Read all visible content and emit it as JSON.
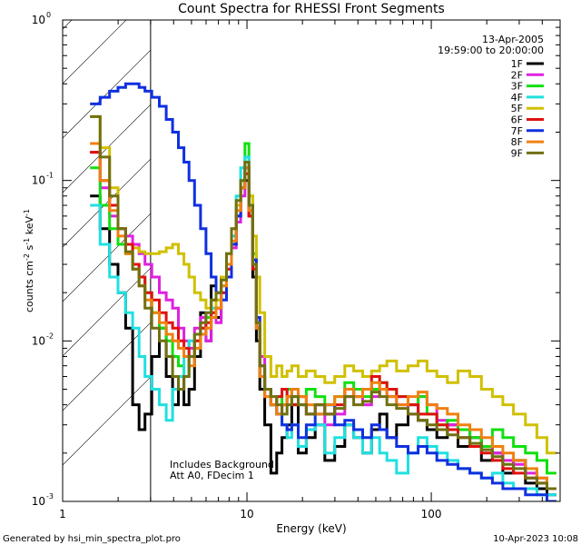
{
  "chart_data": {
    "type": "line",
    "title": "Count Spectra for RHESSI Front Segments",
    "xlabel": "Energy (keV)",
    "ylabel_parts": [
      "counts cm",
      "-2",
      " s",
      "-1",
      " keV",
      "-1"
    ],
    "xscale": "log",
    "yscale": "log",
    "xlim": [
      1,
      500
    ],
    "ylim": [
      0.001,
      1
    ],
    "x_ticks": [
      {
        "value": 1,
        "label": "1"
      },
      {
        "value": 10,
        "label": "10"
      },
      {
        "value": 100,
        "label": "100"
      }
    ],
    "y_ticks": [
      {
        "value": 0.001,
        "base": "10",
        "exp": "-3"
      },
      {
        "value": 0.01,
        "base": "10",
        "exp": "-2"
      },
      {
        "value": 0.1,
        "base": "10",
        "exp": "-1"
      },
      {
        "value": 1,
        "base": "10",
        "exp": "0"
      }
    ],
    "date": "13-Apr-2005",
    "time_range": "19:59:00 to 20:00:00",
    "annotations": [
      "Includes Background",
      "Att A0, FDecim 1"
    ],
    "hatched_region_xmax": 3,
    "x": [
      1.5,
      1.7,
      1.9,
      2.1,
      2.3,
      2.5,
      2.7,
      2.9,
      3.2,
      3.5,
      3.8,
      4.1,
      4.4,
      4.7,
      5.0,
      5.4,
      5.8,
      6.2,
      6.6,
      7.0,
      7.5,
      8.0,
      8.5,
      9.0,
      9.5,
      10.0,
      10.5,
      11.0,
      11.5,
      12.0,
      13,
      14,
      15,
      16,
      17,
      18,
      20,
      22,
      25,
      28,
      32,
      36,
      40,
      45,
      50,
      55,
      60,
      70,
      80,
      90,
      100,
      115,
      130,
      150,
      175,
      200,
      230,
      260,
      300,
      350,
      400,
      450
    ],
    "series": [
      {
        "name": "1F",
        "color": "#000000",
        "values": [
          0.08,
          0.05,
          0.03,
          0.02,
          0.012,
          0.004,
          0.0028,
          0.0035,
          0.008,
          0.012,
          0.006,
          0.004,
          0.006,
          0.004,
          0.005,
          0.008,
          0.015,
          0.01,
          0.022,
          0.014,
          0.025,
          0.03,
          0.04,
          0.06,
          0.09,
          0.1,
          0.06,
          0.025,
          0.01,
          0.005,
          0.003,
          0.0015,
          0.002,
          0.0025,
          0.003,
          0.004,
          0.002,
          0.0025,
          0.003,
          0.0018,
          0.0022,
          0.003,
          0.0025,
          0.002,
          0.0028,
          0.0035,
          0.0025,
          0.003,
          0.004,
          0.0032,
          0.0028,
          0.0025,
          0.003,
          0.0022,
          0.0025,
          0.0018,
          0.002,
          0.0015,
          0.0018,
          0.0013,
          0.0012,
          0.0011
        ]
      },
      {
        "name": "2F",
        "color": "#e020e0",
        "values": [
          0.15,
          0.09,
          0.06,
          0.05,
          0.045,
          0.04,
          0.035,
          0.03,
          0.025,
          0.02,
          0.018,
          0.016,
          0.012,
          0.01,
          0.009,
          0.012,
          0.014,
          0.01,
          0.018,
          0.013,
          0.02,
          0.028,
          0.038,
          0.055,
          0.08,
          0.12,
          0.065,
          0.03,
          0.014,
          0.008,
          0.005,
          0.004,
          0.0035,
          0.004,
          0.0045,
          0.005,
          0.004,
          0.0035,
          0.004,
          0.003,
          0.0035,
          0.0045,
          0.005,
          0.004,
          0.0045,
          0.005,
          0.0045,
          0.004,
          0.0035,
          0.0045,
          0.004,
          0.0032,
          0.003,
          0.0028,
          0.0025,
          0.0022,
          0.002,
          0.0018,
          0.0017,
          0.0015,
          0.0014,
          0.0012
        ]
      },
      {
        "name": "3F",
        "color": "#10e010",
        "values": [
          0.12,
          0.07,
          0.05,
          0.04,
          0.035,
          0.03,
          0.025,
          0.02,
          0.015,
          0.012,
          0.01,
          0.008,
          0.007,
          0.006,
          0.008,
          0.01,
          0.012,
          0.014,
          0.018,
          0.02,
          0.022,
          0.03,
          0.045,
          0.07,
          0.1,
          0.17,
          0.08,
          0.035,
          0.012,
          0.006,
          0.005,
          0.004,
          0.0045,
          0.004,
          0.005,
          0.0045,
          0.004,
          0.005,
          0.0045,
          0.004,
          0.0045,
          0.0055,
          0.005,
          0.0045,
          0.005,
          0.0055,
          0.005,
          0.0045,
          0.004,
          0.0045,
          0.0035,
          0.003,
          0.0032,
          0.0028,
          0.0025,
          0.0022,
          0.0028,
          0.0025,
          0.0022,
          0.002,
          0.0018,
          0.0015
        ]
      },
      {
        "name": "4F",
        "color": "#20e0e0",
        "values": [
          0.07,
          0.04,
          0.025,
          0.02,
          0.015,
          0.012,
          0.008,
          0.006,
          0.005,
          0.004,
          0.0032,
          0.005,
          0.006,
          0.008,
          0.01,
          0.011,
          0.012,
          0.015,
          0.016,
          0.018,
          0.02,
          0.03,
          0.045,
          0.08,
          0.12,
          0.14,
          0.07,
          0.03,
          0.012,
          0.006,
          0.005,
          0.004,
          0.0035,
          0.003,
          0.0025,
          0.003,
          0.0022,
          0.0028,
          0.003,
          0.002,
          0.0025,
          0.003,
          0.0025,
          0.002,
          0.0025,
          0.002,
          0.0018,
          0.0015,
          0.002,
          0.0025,
          0.0022,
          0.002,
          0.0018,
          0.0016,
          0.0015,
          0.0014,
          0.0015,
          0.0013,
          0.0012,
          0.0012,
          0.0011,
          0.0011
        ]
      },
      {
        "name": "5F",
        "color": "#d0c000",
        "values": [
          0.25,
          0.16,
          0.09,
          0.05,
          0.04,
          0.038,
          0.036,
          0.035,
          0.035,
          0.036,
          0.038,
          0.04,
          0.035,
          0.03,
          0.025,
          0.02,
          0.018,
          0.016,
          0.015,
          0.018,
          0.025,
          0.035,
          0.05,
          0.07,
          0.09,
          0.11,
          0.08,
          0.045,
          0.025,
          0.015,
          0.008,
          0.006,
          0.007,
          0.006,
          0.0065,
          0.007,
          0.006,
          0.0065,
          0.006,
          0.0055,
          0.006,
          0.007,
          0.0065,
          0.006,
          0.0065,
          0.007,
          0.0075,
          0.0065,
          0.007,
          0.0075,
          0.0065,
          0.006,
          0.0055,
          0.0065,
          0.006,
          0.005,
          0.0045,
          0.004,
          0.0035,
          0.003,
          0.0025,
          0.002
        ]
      },
      {
        "name": "6F",
        "color": "#e01010",
        "values": [
          0.15,
          0.1,
          0.07,
          0.05,
          0.04,
          0.03,
          0.025,
          0.02,
          0.018,
          0.015,
          0.013,
          0.012,
          0.01,
          0.009,
          0.008,
          0.01,
          0.012,
          0.013,
          0.015,
          0.016,
          0.02,
          0.028,
          0.04,
          0.06,
          0.09,
          0.11,
          0.06,
          0.028,
          0.012,
          0.006,
          0.005,
          0.004,
          0.0045,
          0.005,
          0.0045,
          0.004,
          0.0045,
          0.0035,
          0.004,
          0.0035,
          0.004,
          0.005,
          0.0045,
          0.005,
          0.006,
          0.0055,
          0.005,
          0.0045,
          0.004,
          0.0035,
          0.0035,
          0.003,
          0.0028,
          0.0025,
          0.0022,
          0.002,
          0.0018,
          0.0016,
          0.0015,
          0.0014,
          0.0013,
          0.0012
        ]
      },
      {
        "name": "7F",
        "color": "#1030e0",
        "values": [
          0.3,
          0.33,
          0.36,
          0.38,
          0.4,
          0.4,
          0.38,
          0.36,
          0.33,
          0.29,
          0.24,
          0.2,
          0.16,
          0.13,
          0.1,
          0.07,
          0.05,
          0.035,
          0.025,
          0.02,
          0.018,
          0.025,
          0.04,
          0.06,
          0.09,
          0.12,
          0.07,
          0.032,
          0.014,
          0.007,
          0.005,
          0.004,
          0.0035,
          0.003,
          0.0028,
          0.003,
          0.0025,
          0.003,
          0.0035,
          0.004,
          0.003,
          0.0032,
          0.0028,
          0.0025,
          0.003,
          0.0028,
          0.0025,
          0.0022,
          0.002,
          0.0022,
          0.002,
          0.0018,
          0.0017,
          0.0016,
          0.0015,
          0.0014,
          0.0013,
          0.0012,
          0.0012,
          0.0011,
          0.0011,
          0.001
        ]
      },
      {
        "name": "8F",
        "color": "#f08010",
        "values": [
          0.17,
          0.1,
          0.065,
          0.045,
          0.035,
          0.028,
          0.022,
          0.018,
          0.015,
          0.013,
          0.011,
          0.01,
          0.009,
          0.008,
          0.007,
          0.009,
          0.011,
          0.012,
          0.014,
          0.016,
          0.022,
          0.03,
          0.042,
          0.065,
          0.09,
          0.12,
          0.065,
          0.03,
          0.012,
          0.006,
          0.0045,
          0.004,
          0.0035,
          0.004,
          0.0045,
          0.005,
          0.0045,
          0.004,
          0.0035,
          0.004,
          0.0045,
          0.005,
          0.0045,
          0.005,
          0.0055,
          0.005,
          0.0045,
          0.004,
          0.0045,
          0.0048,
          0.004,
          0.0038,
          0.0035,
          0.003,
          0.0028,
          0.0025,
          0.0022,
          0.002,
          0.0018,
          0.0016,
          0.0014,
          0.0012
        ]
      },
      {
        "name": "9F",
        "color": "#707010",
        "values": [
          0.25,
          0.14,
          0.08,
          0.05,
          0.036,
          0.028,
          0.022,
          0.016,
          0.012,
          0.01,
          0.008,
          0.006,
          0.005,
          0.006,
          0.008,
          0.011,
          0.013,
          0.015,
          0.018,
          0.02,
          0.024,
          0.035,
          0.05,
          0.075,
          0.1,
          0.13,
          0.07,
          0.03,
          0.013,
          0.007,
          0.005,
          0.0045,
          0.004,
          0.0035,
          0.004,
          0.0045,
          0.004,
          0.0035,
          0.004,
          0.0035,
          0.0038,
          0.0045,
          0.004,
          0.0042,
          0.0048,
          0.0045,
          0.004,
          0.0038,
          0.0035,
          0.0032,
          0.003,
          0.0028,
          0.0026,
          0.0025,
          0.0023,
          0.0021,
          0.0019,
          0.0017,
          0.0016,
          0.0014,
          0.0013,
          0.0012
        ]
      }
    ]
  },
  "footer": {
    "left": "Generated by hsi_min_spectra_plot.pro",
    "right": "10-Apr-2023 10:08"
  }
}
